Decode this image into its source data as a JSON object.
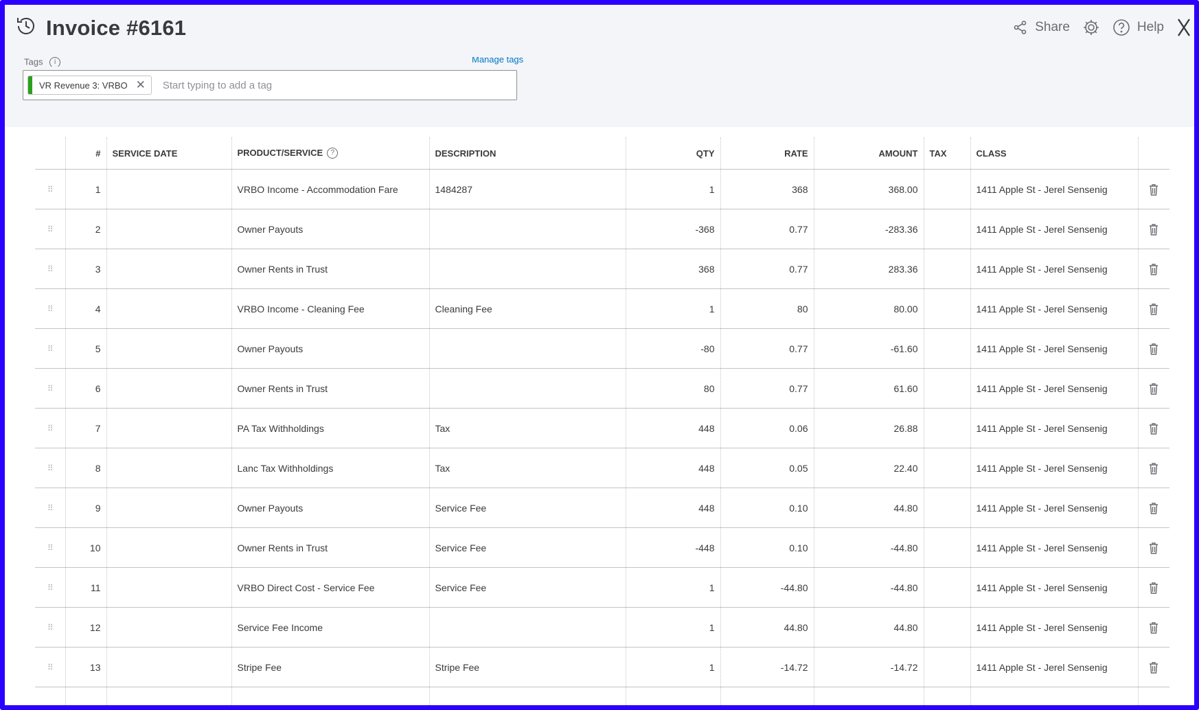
{
  "header": {
    "title": "Invoice #6161",
    "share_label": "Share",
    "help_label": "Help"
  },
  "tags": {
    "label": "Tags",
    "manage_label": "Manage tags",
    "chip_label": "VR Revenue 3: VRBO",
    "chip_color": "#2ca01c",
    "placeholder": "Start typing to add a tag"
  },
  "columns": {
    "num": "#",
    "service_date": "SERVICE DATE",
    "product": "PRODUCT/SERVICE",
    "description": "DESCRIPTION",
    "qty": "QTY",
    "rate": "RATE",
    "amount": "AMOUNT",
    "tax": "TAX",
    "class": "CLASS"
  },
  "rows": [
    {
      "num": "1",
      "date": "",
      "product": "VRBO Income - Accommodation Fare",
      "description": "1484287",
      "qty": "1",
      "rate": "368",
      "amount": "368.00",
      "tax": "",
      "class": "1411 Apple St - Jerel Sensenig"
    },
    {
      "num": "2",
      "date": "",
      "product": "Owner Payouts",
      "description": "",
      "qty": "-368",
      "rate": "0.77",
      "amount": "-283.36",
      "tax": "",
      "class": "1411 Apple St - Jerel Sensenig"
    },
    {
      "num": "3",
      "date": "",
      "product": "Owner Rents in Trust",
      "description": "",
      "qty": "368",
      "rate": "0.77",
      "amount": "283.36",
      "tax": "",
      "class": "1411 Apple St - Jerel Sensenig"
    },
    {
      "num": "4",
      "date": "",
      "product": "VRBO Income - Cleaning Fee",
      "description": "Cleaning Fee",
      "qty": "1",
      "rate": "80",
      "amount": "80.00",
      "tax": "",
      "class": "1411 Apple St - Jerel Sensenig"
    },
    {
      "num": "5",
      "date": "",
      "product": "Owner Payouts",
      "description": "",
      "qty": "-80",
      "rate": "0.77",
      "amount": "-61.60",
      "tax": "",
      "class": "1411 Apple St - Jerel Sensenig"
    },
    {
      "num": "6",
      "date": "",
      "product": "Owner Rents in Trust",
      "description": "",
      "qty": "80",
      "rate": "0.77",
      "amount": "61.60",
      "tax": "",
      "class": "1411 Apple St - Jerel Sensenig"
    },
    {
      "num": "7",
      "date": "",
      "product": "PA Tax Withholdings",
      "description": "Tax",
      "qty": "448",
      "rate": "0.06",
      "amount": "26.88",
      "tax": "",
      "class": "1411 Apple St - Jerel Sensenig"
    },
    {
      "num": "8",
      "date": "",
      "product": "Lanc Tax Withholdings",
      "description": "Tax",
      "qty": "448",
      "rate": "0.05",
      "amount": "22.40",
      "tax": "",
      "class": "1411 Apple St - Jerel Sensenig"
    },
    {
      "num": "9",
      "date": "",
      "product": "Owner Payouts",
      "description": "Service Fee",
      "qty": "448",
      "rate": "0.10",
      "amount": "44.80",
      "tax": "",
      "class": "1411 Apple St - Jerel Sensenig"
    },
    {
      "num": "10",
      "date": "",
      "product": "Owner Rents in Trust",
      "description": "Service Fee",
      "qty": "-448",
      "rate": "0.10",
      "amount": "-44.80",
      "tax": "",
      "class": "1411 Apple St - Jerel Sensenig"
    },
    {
      "num": "11",
      "date": "",
      "product": "VRBO Direct Cost - Service Fee",
      "description": "Service Fee",
      "qty": "1",
      "rate": "-44.80",
      "amount": "-44.80",
      "tax": "",
      "class": "1411 Apple St - Jerel Sensenig"
    },
    {
      "num": "12",
      "date": "",
      "product": "Service Fee Income",
      "description": "",
      "qty": "1",
      "rate": "44.80",
      "amount": "44.80",
      "tax": "",
      "class": "1411 Apple St - Jerel Sensenig"
    },
    {
      "num": "13",
      "date": "",
      "product": "Stripe Fee",
      "description": "Stripe Fee",
      "qty": "1",
      "rate": "-14.72",
      "amount": "-14.72",
      "tax": "",
      "class": "1411 Apple St - Jerel Sensenig"
    }
  ],
  "colors": {
    "frame": "#2b00ff",
    "header_bg": "#f4f5f8",
    "link": "#0077c5"
  },
  "icons": [
    "history-icon",
    "share-icon",
    "gear-icon",
    "help-icon",
    "close-icon",
    "drag-handle-icon",
    "trash-icon",
    "info-icon"
  ]
}
